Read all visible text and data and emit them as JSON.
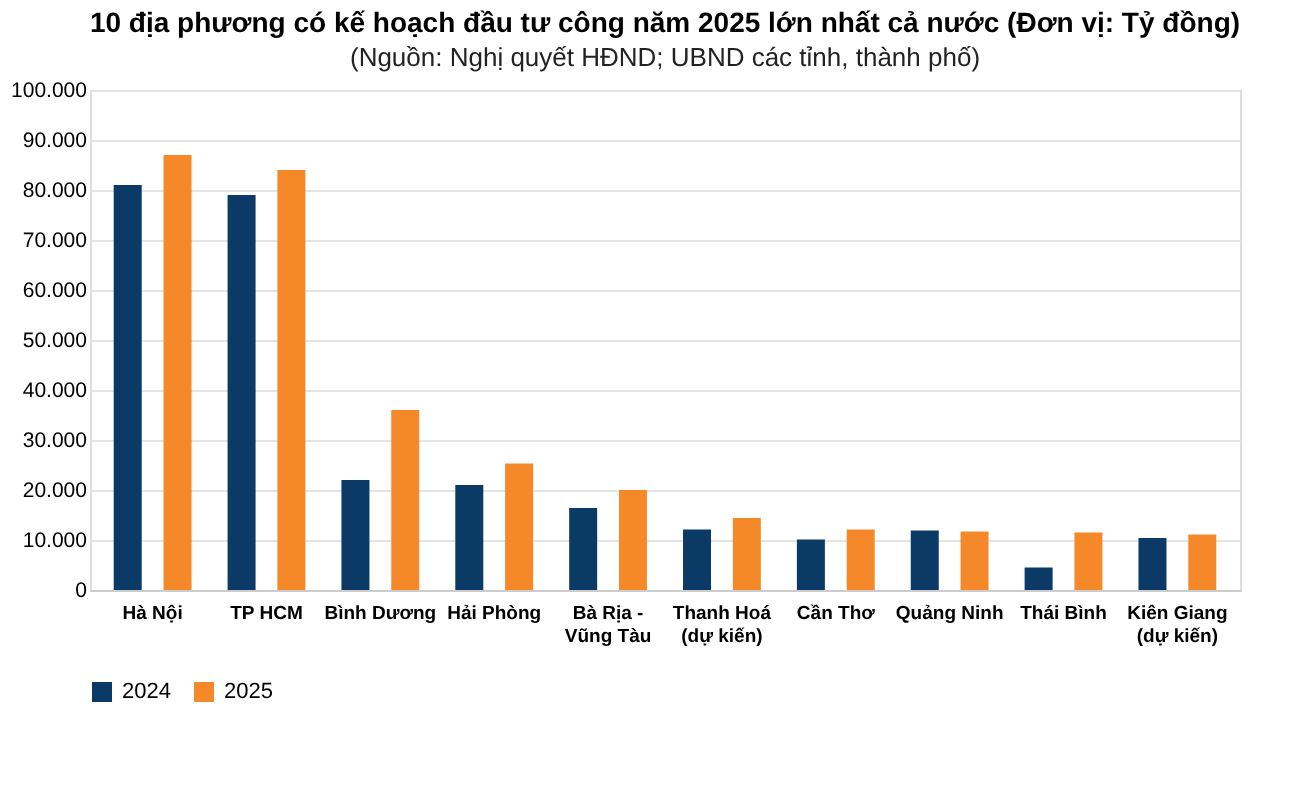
{
  "chart_data": {
    "type": "bar",
    "title": "10 địa phương có kế hoạch đầu tư công năm 2025 lớn nhất cả nước (Đơn vị: Tỷ đồng)",
    "subtitle": "(Nguồn: Nghị quyết HĐND; UBND các tỉnh, thành phố)",
    "categories": [
      "Hà Nội",
      "TP HCM",
      "Bình Dương",
      "Hải Phòng",
      "Bà Rịa -\nVũng Tàu",
      "Thanh Hoá\n(dự kiến)",
      "Cần Thơ",
      "Quảng Ninh",
      "Thái Bình",
      "Kiên Giang\n(dự kiến)"
    ],
    "series": [
      {
        "name": "2024",
        "color": "#0b3a66",
        "values": [
          81000,
          79000,
          22000,
          21000,
          16400,
          12100,
          10100,
          11900,
          4500,
          10400
        ]
      },
      {
        "name": "2025",
        "color": "#f5892a",
        "values": [
          87000,
          84000,
          36000,
          25300,
          20000,
          14400,
          12100,
          11700,
          11500,
          11100
        ]
      }
    ],
    "ylim": [
      0,
      100000
    ],
    "yticks": [
      {
        "value": 0,
        "label": "0"
      },
      {
        "value": 10000,
        "label": "10.000"
      },
      {
        "value": 20000,
        "label": "20.000"
      },
      {
        "value": 30000,
        "label": "30.000"
      },
      {
        "value": 40000,
        "label": "40.000"
      },
      {
        "value": 50000,
        "label": "50.000"
      },
      {
        "value": 60000,
        "label": "60.000"
      },
      {
        "value": 70000,
        "label": "70.000"
      },
      {
        "value": 80000,
        "label": "80.000"
      },
      {
        "value": 90000,
        "label": "90.000"
      },
      {
        "value": 100000,
        "label": "100.000"
      }
    ],
    "grid": "y",
    "legend": "bottom"
  }
}
